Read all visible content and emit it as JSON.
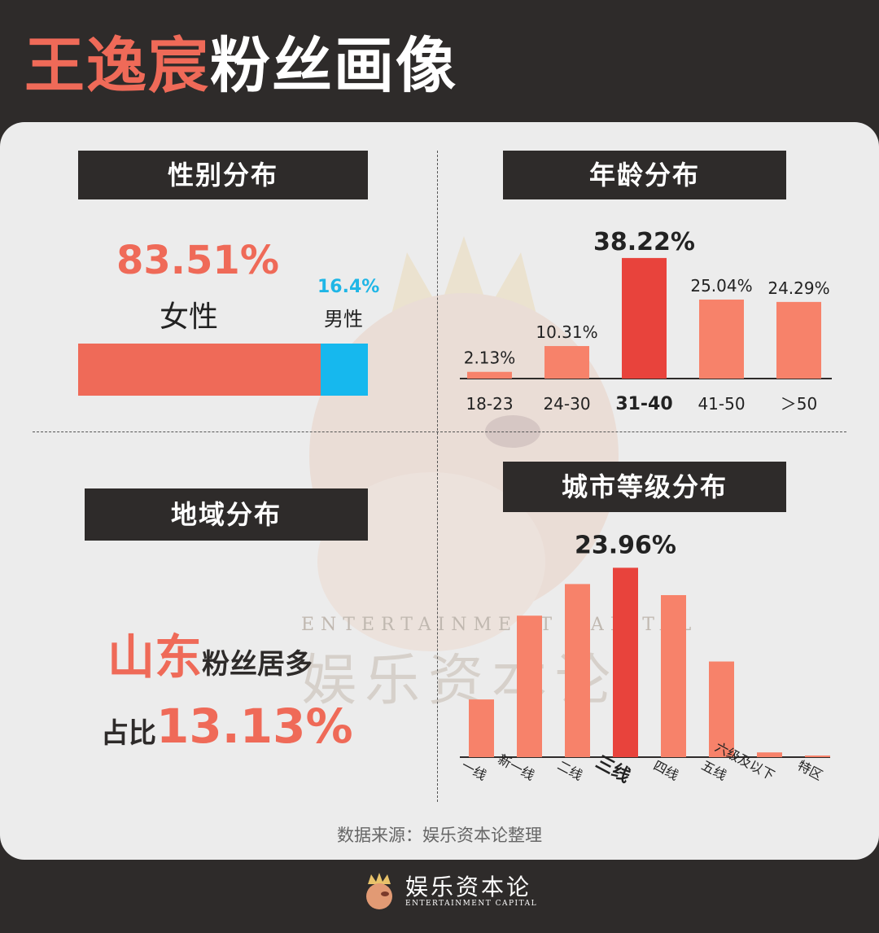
{
  "title": {
    "highlight": "王逸宸",
    "rest": "粉丝画像"
  },
  "gender": {
    "heading": "性别分布",
    "female_pct": "83.51%",
    "female_label": "女性",
    "male_pct": "16.4%",
    "male_label": "男性",
    "female_value": 83.51,
    "male_value": 16.4
  },
  "region": {
    "heading": "地域分布",
    "province": "山东",
    "province_suffix": "粉丝居多",
    "share_prefix": "占比",
    "share_value": "13.13%"
  },
  "watermark": {
    "cn": "娱乐资本论",
    "en": "ENTERTAINMENT CAPITAL"
  },
  "colors": {
    "accent": "#ef6a58",
    "highlight_bar": "#e8433c",
    "bar": "#f7826a",
    "male": "#16b8ee",
    "dark": "#2e2b2a"
  },
  "chart_data": [
    {
      "type": "bar",
      "title": "年龄分布",
      "categories": [
        "18-23",
        "24-30",
        "31-40",
        "41-50",
        "＞50"
      ],
      "values": [
        2.13,
        10.31,
        38.22,
        25.04,
        24.29
      ],
      "value_labels": [
        "2.13%",
        "10.31%",
        "38.22%",
        "25.04%",
        "24.29%"
      ],
      "highlight": "31-40",
      "ylim": [
        0,
        40
      ]
    },
    {
      "type": "bar",
      "title": "城市等级分布",
      "categories": [
        "一线",
        "新一线",
        "二线",
        "三线",
        "四线",
        "五线",
        "六级及以下",
        "特区"
      ],
      "values": [
        7.3,
        17.9,
        21.9,
        23.96,
        20.5,
        12.1,
        0.6,
        0.15
      ],
      "value_labels": [
        "",
        "",
        "",
        "23.96%",
        "",
        "",
        "",
        ""
      ],
      "highlight": "三线",
      "ylim": [
        0,
        24
      ]
    }
  ],
  "source": "数据来源：娱乐资本论整理",
  "footer": {
    "cn": "娱乐资本论",
    "en": "ENTERTAINMENT CAPITAL"
  }
}
